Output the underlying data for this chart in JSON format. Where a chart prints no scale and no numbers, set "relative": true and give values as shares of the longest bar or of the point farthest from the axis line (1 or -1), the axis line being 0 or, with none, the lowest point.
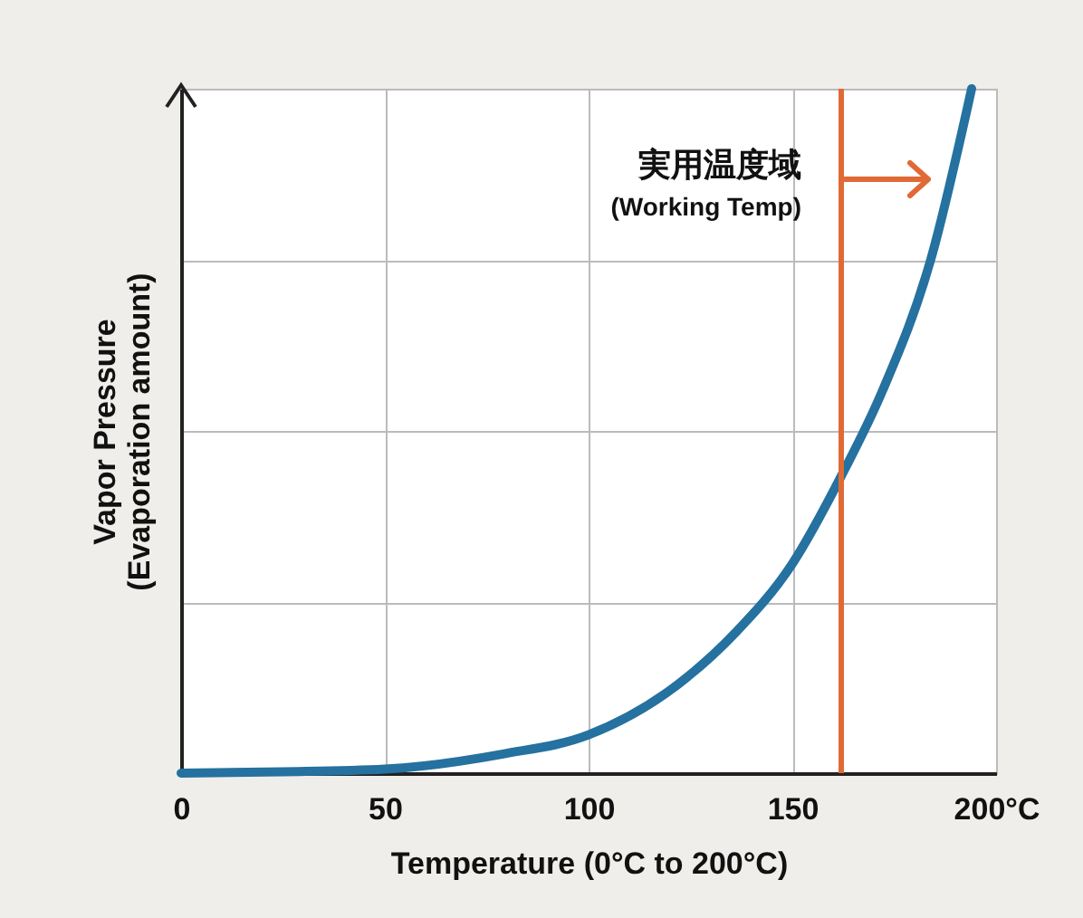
{
  "chart_data": {
    "type": "line",
    "relative": true,
    "xlabel": "Temperature (0°C to 200°C)",
    "ylabel": "Vapor Pressure\n(Evaporation amount)",
    "x": [
      0,
      25,
      50,
      79,
      100,
      122,
      136,
      150,
      162,
      172,
      184,
      194
    ],
    "series": [
      {
        "color": "#2571a0",
        "values": [
          0,
          0.002,
          0.006,
          0.028,
          0.056,
          0.13,
          0.205,
          0.306,
          0.434,
          0.557,
          0.751,
          1
        ]
      }
    ],
    "xlim": [
      0,
      200
    ],
    "xticks": [
      0,
      50,
      100,
      150,
      {
        "value": 200,
        "label": "200°C"
      }
    ],
    "grid": true,
    "ref_lines": [
      {
        "axis": "x",
        "value": 162,
        "label": "実用温度域",
        "color": "#e06a35"
      }
    ],
    "annotations": [
      {
        "text": "(Working Temp)",
        "x": 162
      }
    ]
  }
}
